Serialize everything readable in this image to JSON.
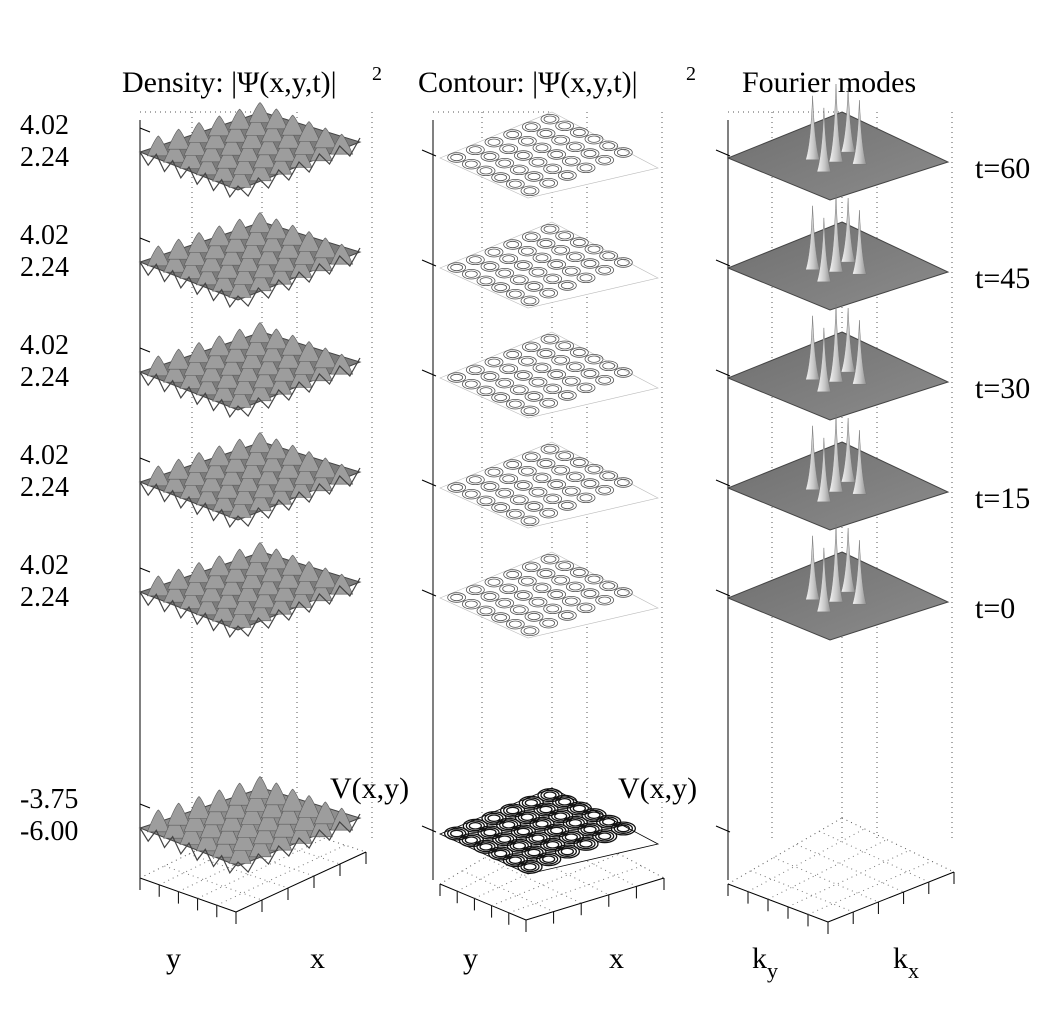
{
  "figure": {
    "column_titles": {
      "density": "Density: |Ψ(x,y,t)|",
      "contour": "Contour: |Ψ(x,y,t)|",
      "fourier": "Fourier modes",
      "power": "2"
    },
    "potential_label": "V(x,y)",
    "axis_labels": {
      "y": "y",
      "x": "x",
      "ky_base": "k",
      "ky_sub": "y",
      "kx_base": "k",
      "kx_sub": "x"
    },
    "time_labels": [
      "t=60",
      "t=45",
      "t=30",
      "t=15",
      "t=0"
    ],
    "density_ticks": {
      "high": "4.02",
      "low": "2.24"
    },
    "potential_ticks": {
      "high": "-3.75",
      "low": "-6.00"
    }
  },
  "chart_data": {
    "type": "surface",
    "columns": [
      "Density: |Ψ(x,y,t)|^2",
      "Contour: |Ψ(x,y,t)|^2",
      "Fourier modes"
    ],
    "snapshots_t": [
      60,
      45,
      30,
      15,
      0
    ],
    "density_zticks": [
      2.24,
      4.02
    ],
    "potential_zticks": [
      -6.0,
      -3.75
    ],
    "lattice": {
      "wells_x": 6,
      "wells_y": 6
    },
    "fourier_peaks": 5,
    "colors": {
      "surface": "#8a8a8a",
      "peak": "#dcdcdc",
      "grid": "#555555"
    }
  }
}
